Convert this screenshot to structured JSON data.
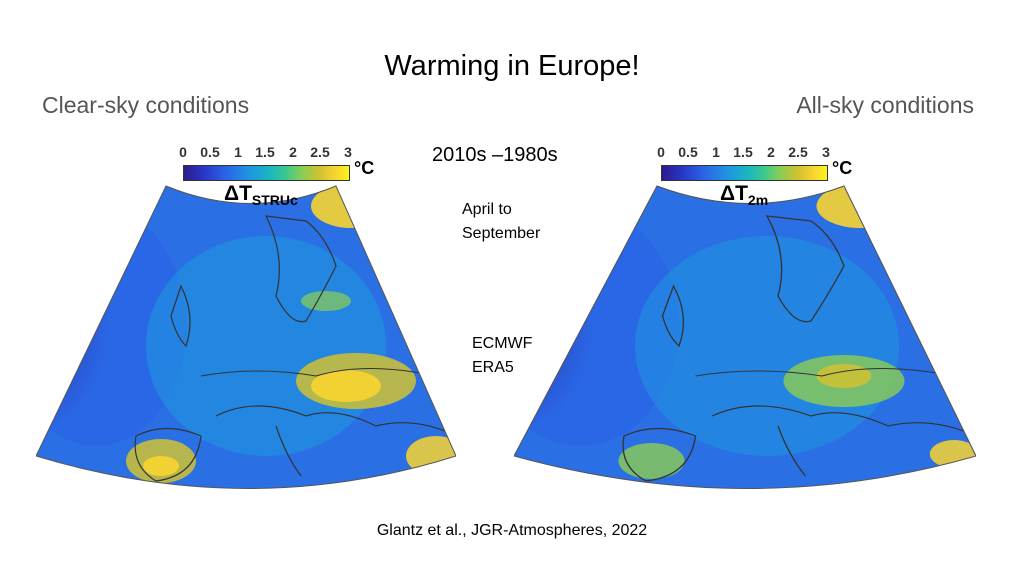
{
  "title": "Warming in Europe!",
  "left_panel": {
    "heading": "Clear-sky conditions",
    "variable": "ΔT",
    "variable_sub": "STRUc"
  },
  "right_panel": {
    "heading": "All-sky conditions",
    "variable": "ΔT",
    "variable_sub": "2m"
  },
  "colorbar": {
    "ticks": [
      "0",
      "0.5",
      "1",
      "1.5",
      "2",
      "2.5",
      "3"
    ],
    "unit": "°C",
    "min": 0,
    "max": 3
  },
  "period": "2010s –1980s",
  "season_line1": "April to",
  "season_line2": "September",
  "dataset_line1": "ECMWF",
  "dataset_line2": "ERA5",
  "citation": "Glantz et al., JGR-Atmospheres, 2022",
  "colors": {
    "ocean_deep": "#2c2aa8",
    "ocean": "#2a66e6",
    "land_mid": "#1f95e0",
    "warm": "#8ccd52",
    "hot": "#f8d430",
    "border": "#333333"
  }
}
